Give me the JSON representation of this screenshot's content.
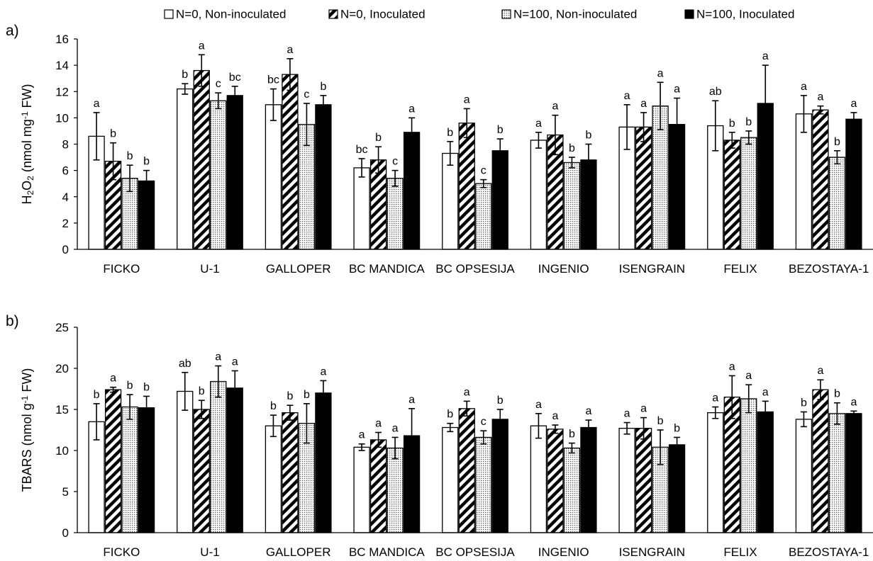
{
  "legend": [
    {
      "name": "N=0, Non-inoculated",
      "pattern": "white"
    },
    {
      "name": "N=0, Inoculated",
      "pattern": "diagonal"
    },
    {
      "name": "N=100, Non-inoculated",
      "pattern": "dots"
    },
    {
      "name": "N=100, Inoculated",
      "pattern": "black"
    }
  ],
  "chart_data": [
    {
      "type": "bar",
      "panel_label": "a)",
      "ylabel_parts": [
        {
          "t": "H",
          "s": "n"
        },
        {
          "t": "2",
          "s": "sub"
        },
        {
          "t": "O",
          "s": "n"
        },
        {
          "t": "2",
          "s": "sub"
        },
        {
          "t": " (nmol mg",
          "s": "n"
        },
        {
          "t": "-1",
          "s": "sup"
        },
        {
          "t": " FW)",
          "s": "n"
        }
      ],
      "ylim": [
        0,
        16
      ],
      "yticks": [
        0,
        2,
        4,
        6,
        8,
        10,
        12,
        14,
        16
      ],
      "categories": [
        "FICKO",
        "U-1",
        "GALLOPER",
        "BC MANDICA",
        "BC OPSESIJA",
        "INGENIO",
        "ISENGRAIN",
        "FELIX",
        "BEZOSTAYA-1"
      ],
      "series": [
        {
          "name": "N=0, Non-inoculated",
          "values": [
            8.6,
            12.2,
            11.0,
            6.2,
            7.3,
            8.3,
            9.3,
            9.4,
            10.3
          ],
          "errors": [
            1.8,
            0.4,
            1.2,
            0.7,
            0.9,
            0.6,
            1.7,
            1.9,
            1.4
          ],
          "letters": [
            "a",
            "b",
            "bc",
            "bc",
            "b",
            "a",
            "a",
            "ab",
            "a"
          ]
        },
        {
          "name": "N=0, Inoculated",
          "values": [
            6.7,
            13.6,
            13.3,
            6.8,
            9.6,
            8.7,
            9.3,
            8.3,
            10.6
          ],
          "errors": [
            1.4,
            1.2,
            1.2,
            1.0,
            1.1,
            1.5,
            1.1,
            0.6,
            0.3
          ],
          "letters": [
            "b",
            "a",
            "a",
            "b",
            "a",
            "a",
            "a",
            "b",
            "a"
          ]
        },
        {
          "name": "N=100, Non-inoculated",
          "values": [
            5.4,
            11.3,
            9.5,
            5.4,
            5.0,
            6.6,
            10.9,
            8.5,
            7.0
          ],
          "errors": [
            1.0,
            0.6,
            1.6,
            0.6,
            0.3,
            0.4,
            1.8,
            0.5,
            0.5
          ],
          "letters": [
            "b",
            "c",
            "c",
            "c",
            "c",
            "b",
            "a",
            "b",
            "b"
          ]
        },
        {
          "name": "N=100, Inoculated",
          "values": [
            5.2,
            11.7,
            11.0,
            8.9,
            7.5,
            6.8,
            9.5,
            11.1,
            9.9
          ],
          "errors": [
            0.8,
            0.7,
            0.7,
            1.1,
            0.9,
            1.2,
            2.0,
            2.9,
            0.5
          ],
          "letters": [
            "b",
            "bc",
            "b",
            "a",
            "b",
            "b",
            "a",
            "a",
            "a"
          ]
        }
      ]
    },
    {
      "type": "bar",
      "panel_label": "b)",
      "ylabel_parts": [
        {
          "t": "TBARS (nmol g",
          "s": "n"
        },
        {
          "t": "-1",
          "s": "sup"
        },
        {
          "t": " FW)",
          "s": "n"
        }
      ],
      "ylim": [
        0,
        25
      ],
      "yticks": [
        0,
        5,
        10,
        15,
        20,
        25
      ],
      "categories": [
        "FICKO",
        "U-1",
        "GALLOPER",
        "BC MANDICA",
        "BC OPSESIJA",
        "INGENIO",
        "ISENGRAIN",
        "FELIX",
        "BEZOSTAYA-1"
      ],
      "series": [
        {
          "name": "N=0, Non-inoculated",
          "values": [
            13.5,
            17.2,
            13.0,
            10.4,
            12.8,
            13.0,
            12.7,
            14.6,
            13.8
          ],
          "errors": [
            2.2,
            2.3,
            1.3,
            0.4,
            0.5,
            1.5,
            0.7,
            0.7,
            0.9
          ],
          "letters": [
            "b",
            "ab",
            "b",
            "a",
            "b",
            "a",
            "a",
            "a",
            "b"
          ]
        },
        {
          "name": "N=0, Inoculated",
          "values": [
            17.4,
            15.0,
            14.6,
            11.3,
            15.1,
            12.6,
            12.7,
            16.5,
            17.4
          ],
          "errors": [
            0.3,
            1.1,
            0.9,
            0.9,
            0.9,
            0.5,
            1.3,
            2.6,
            1.2
          ],
          "letters": [
            "a",
            "b",
            "b",
            "a",
            "a",
            "a",
            "a",
            "a",
            "a"
          ]
        },
        {
          "name": "N=100, Non-inoculated",
          "values": [
            15.3,
            18.4,
            13.3,
            10.3,
            11.6,
            10.3,
            10.4,
            16.3,
            14.5
          ],
          "errors": [
            1.5,
            1.9,
            2.4,
            1.3,
            0.8,
            0.6,
            2.1,
            1.7,
            1.3
          ],
          "letters": [
            "b",
            "a",
            "b",
            "a",
            "c",
            "b",
            "b",
            "a",
            "b"
          ]
        },
        {
          "name": "N=100, Inoculated",
          "values": [
            15.2,
            17.6,
            17.0,
            11.8,
            13.8,
            12.8,
            10.7,
            14.7,
            14.5
          ],
          "errors": [
            1.4,
            2.1,
            1.5,
            3.3,
            1.2,
            0.9,
            0.9,
            1.3,
            0.3
          ],
          "letters": [
            "b",
            "a",
            "a",
            "a",
            "b",
            "a",
            "b",
            "a",
            "a"
          ]
        }
      ]
    }
  ]
}
